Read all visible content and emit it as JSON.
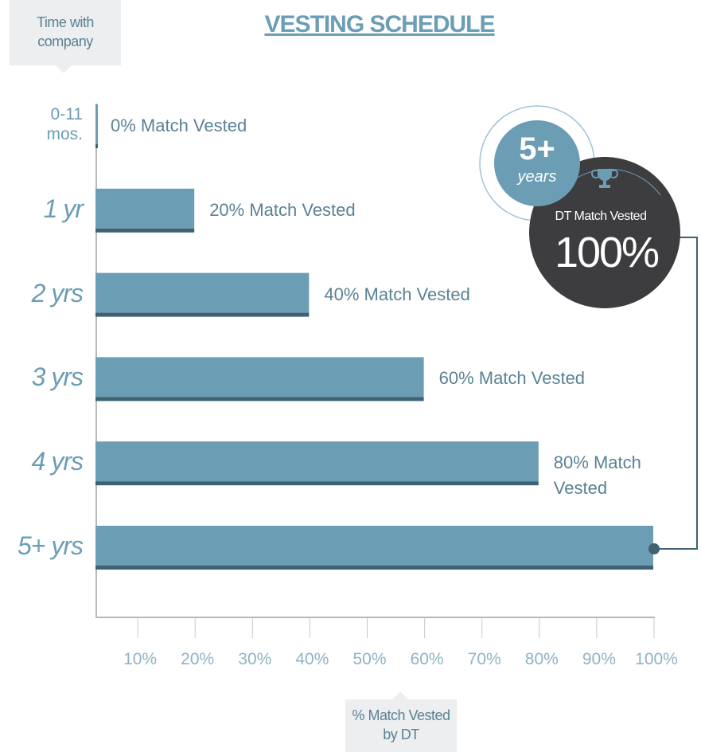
{
  "chart_data": {
    "type": "bar",
    "orientation": "horizontal",
    "title": "VESTING SCHEDULE",
    "y_label": "Time with company",
    "x_label": "% Match Vested by DT",
    "categories": [
      "0-11 mos.",
      "1 yr",
      "2 yrs",
      "3 yrs",
      "4 yrs",
      "5+ yrs"
    ],
    "values": [
      0,
      20,
      40,
      60,
      80,
      100
    ],
    "value_labels": [
      "0% Match Vested",
      "20% Match Vested",
      "40% Match Vested",
      "60% Match Vested",
      "80% Match Vested",
      null
    ],
    "color": "#6b9db5",
    "xlim": [
      0,
      100
    ],
    "xticks": [
      {
        "value": 10,
        "label": "10%"
      },
      {
        "value": 20,
        "label": "20%"
      },
      {
        "value": 30,
        "label": "30%"
      },
      {
        "value": 40,
        "label": "40%"
      },
      {
        "value": 50,
        "label": "50%"
      },
      {
        "value": 60,
        "label": "60%"
      },
      {
        "value": 70,
        "label": "70%"
      },
      {
        "value": 80,
        "label": "80%"
      },
      {
        "value": 90,
        "label": "90%"
      },
      {
        "value": 100,
        "label": "100%"
      }
    ],
    "badge": {
      "title": "5+",
      "subtitle": "years",
      "caption": "DT Match Vested",
      "value": "100%"
    }
  }
}
